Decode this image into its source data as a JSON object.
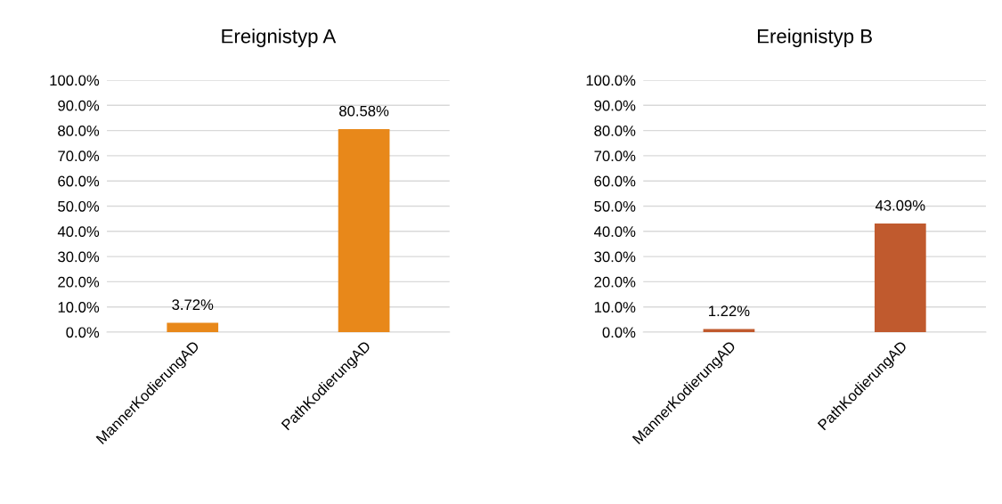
{
  "chart_data": [
    {
      "type": "bar",
      "title": "Ereignistyp A",
      "categories": [
        "MannerKodierungAD",
        "PathKodierungAD"
      ],
      "values": [
        3.72,
        80.58
      ],
      "color": "#e8881a",
      "value_labels": [
        "3.72%",
        "80.58%"
      ],
      "ylim": [
        0,
        100
      ],
      "yticks": [
        {
          "value": 0,
          "label": "0.0%"
        },
        {
          "value": 10,
          "label": "10.0%"
        },
        {
          "value": 20,
          "label": "20.0%"
        },
        {
          "value": 30,
          "label": "30.0%"
        },
        {
          "value": 40,
          "label": "40.0%"
        },
        {
          "value": 50,
          "label": "50.0%"
        },
        {
          "value": 60,
          "label": "60.0%"
        },
        {
          "value": 70,
          "label": "70.0%"
        },
        {
          "value": 80,
          "label": "80.0%"
        },
        {
          "value": 90,
          "label": "90.0%"
        },
        {
          "value": 100,
          "label": "100.0%"
        }
      ],
      "grid": "y"
    },
    {
      "type": "bar",
      "title": "Ereignistyp B",
      "categories": [
        "MannerKodierungAD",
        "PathKodierungAD"
      ],
      "values": [
        1.22,
        43.09
      ],
      "color": "#c05a2e",
      "value_labels": [
        "1.22%",
        "43.09%"
      ],
      "ylim": [
        0,
        100
      ],
      "yticks": [
        {
          "value": 0,
          "label": "0.0%"
        },
        {
          "value": 10,
          "label": "10.0%"
        },
        {
          "value": 20,
          "label": "20.0%"
        },
        {
          "value": 30,
          "label": "30.0%"
        },
        {
          "value": 40,
          "label": "40.0%"
        },
        {
          "value": 50,
          "label": "50.0%"
        },
        {
          "value": 60,
          "label": "60.0%"
        },
        {
          "value": 70,
          "label": "70.0%"
        },
        {
          "value": 80,
          "label": "80.0%"
        },
        {
          "value": 90,
          "label": "90.0%"
        },
        {
          "value": 100,
          "label": "100.0%"
        }
      ],
      "grid": "y"
    }
  ]
}
